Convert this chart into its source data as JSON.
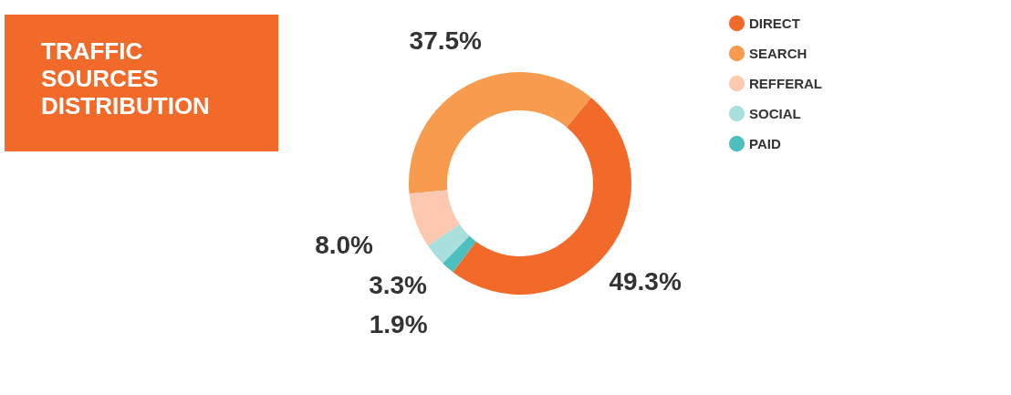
{
  "chart_data": {
    "type": "donut",
    "title": "TRAFFIC SOURCES DISTRIBUTION",
    "categories": [
      "DIRECT",
      "SEARCH",
      "REFFERAL",
      "SOCIAL",
      "PAID"
    ],
    "values": [
      49.3,
      37.5,
      8.0,
      3.3,
      1.9
    ],
    "value_labels": [
      "49.3%",
      "37.5%",
      "8.0%",
      "3.3%",
      "1.9%"
    ],
    "colors": [
      "#f26a2a",
      "#f79c4e",
      "#fcc8b0",
      "#a9dfdc",
      "#4dbfbf"
    ],
    "legend": "right"
  }
}
